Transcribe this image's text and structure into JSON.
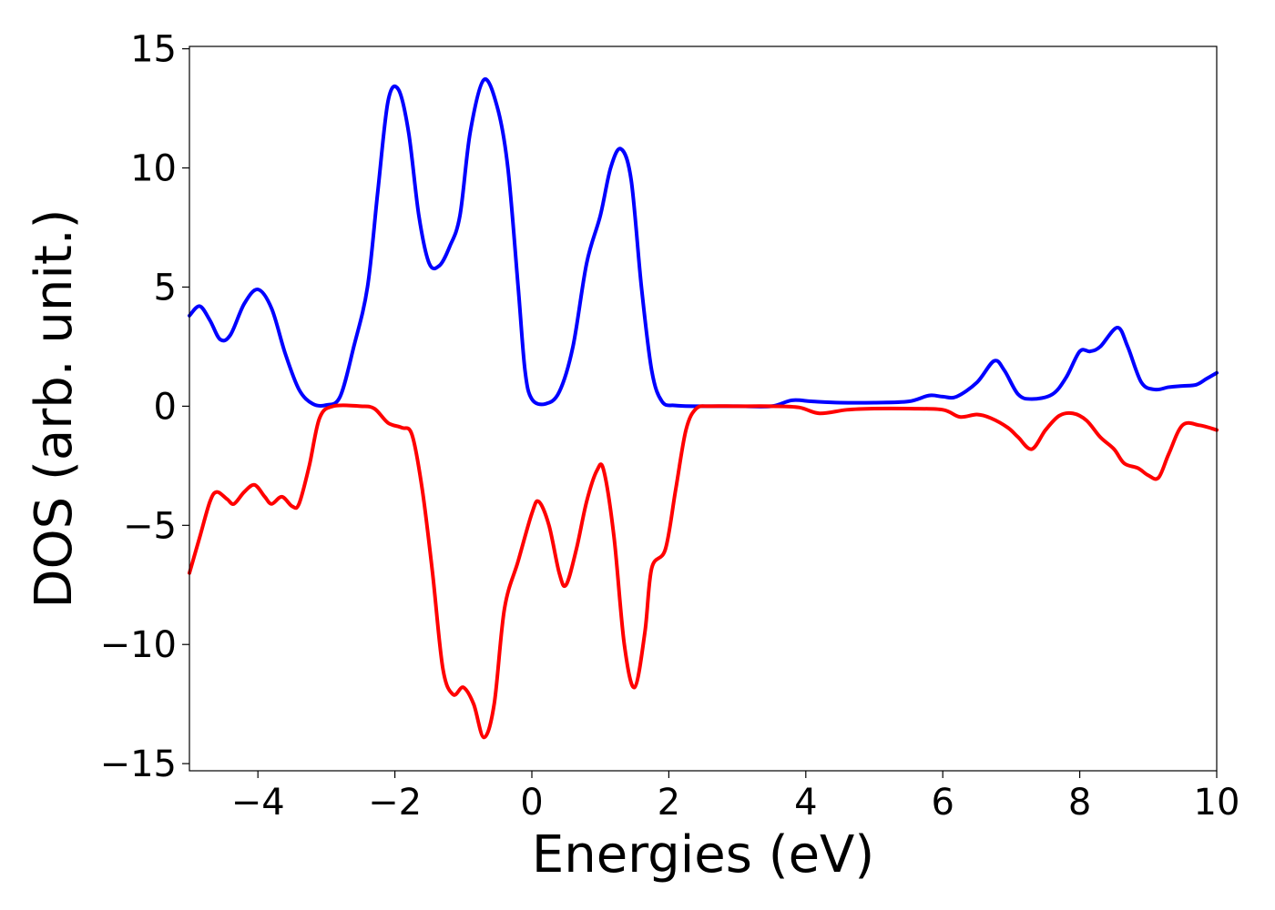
{
  "chart_data": {
    "type": "line",
    "title": "",
    "xlabel": "Energies (eV)",
    "ylabel": "DOS (arb. unit.)",
    "xlim": [
      -5,
      10
    ],
    "ylim": [
      -15.3,
      15.1
    ],
    "grid": false,
    "legend": "none",
    "x_ticks": [
      -4,
      -2,
      0,
      2,
      4,
      6,
      8,
      10
    ],
    "x_tick_labels": [
      "−4",
      "−2",
      "0",
      "2",
      "4",
      "6",
      "8",
      "10"
    ],
    "y_ticks": [
      15,
      10,
      5,
      0,
      -5,
      -10,
      -15
    ],
    "y_tick_labels": [
      "15",
      "10",
      "5",
      "0",
      "−5",
      "−10",
      "−15"
    ],
    "series": [
      {
        "color": "#0000ff",
        "points": [
          [
            -5.0,
            3.8
          ],
          [
            -4.85,
            4.2
          ],
          [
            -4.7,
            3.6
          ],
          [
            -4.55,
            2.8
          ],
          [
            -4.4,
            3.0
          ],
          [
            -4.2,
            4.3
          ],
          [
            -4.0,
            4.9
          ],
          [
            -3.8,
            4.1
          ],
          [
            -3.6,
            2.2
          ],
          [
            -3.4,
            0.7
          ],
          [
            -3.2,
            0.1
          ],
          [
            -3.0,
            0.05
          ],
          [
            -2.8,
            0.4
          ],
          [
            -2.6,
            2.5
          ],
          [
            -2.4,
            5.0
          ],
          [
            -2.25,
            9.0
          ],
          [
            -2.1,
            12.8
          ],
          [
            -1.95,
            13.3
          ],
          [
            -1.8,
            11.5
          ],
          [
            -1.65,
            8.0
          ],
          [
            -1.5,
            6.0
          ],
          [
            -1.35,
            5.9
          ],
          [
            -1.2,
            6.7
          ],
          [
            -1.05,
            8.0
          ],
          [
            -0.9,
            11.5
          ],
          [
            -0.7,
            13.7
          ],
          [
            -0.5,
            12.5
          ],
          [
            -0.35,
            10.0
          ],
          [
            -0.2,
            5.0
          ],
          [
            -0.1,
            1.5
          ],
          [
            0.0,
            0.3
          ],
          [
            0.2,
            0.1
          ],
          [
            0.4,
            0.6
          ],
          [
            0.6,
            2.5
          ],
          [
            0.8,
            6.0
          ],
          [
            1.0,
            8.0
          ],
          [
            1.15,
            10.0
          ],
          [
            1.3,
            10.8
          ],
          [
            1.45,
            9.5
          ],
          [
            1.6,
            5.0
          ],
          [
            1.75,
            1.5
          ],
          [
            1.9,
            0.2
          ],
          [
            2.1,
            0.03
          ],
          [
            2.5,
            0.0
          ],
          [
            3.0,
            0.0
          ],
          [
            3.5,
            0.0
          ],
          [
            3.8,
            0.25
          ],
          [
            4.1,
            0.2
          ],
          [
            4.5,
            0.15
          ],
          [
            5.0,
            0.15
          ],
          [
            5.5,
            0.2
          ],
          [
            5.8,
            0.45
          ],
          [
            6.0,
            0.4
          ],
          [
            6.2,
            0.4
          ],
          [
            6.5,
            1.0
          ],
          [
            6.75,
            1.9
          ],
          [
            6.9,
            1.5
          ],
          [
            7.1,
            0.5
          ],
          [
            7.3,
            0.3
          ],
          [
            7.6,
            0.5
          ],
          [
            7.8,
            1.2
          ],
          [
            8.0,
            2.3
          ],
          [
            8.15,
            2.3
          ],
          [
            8.3,
            2.5
          ],
          [
            8.55,
            3.3
          ],
          [
            8.7,
            2.5
          ],
          [
            8.9,
            1.0
          ],
          [
            9.1,
            0.7
          ],
          [
            9.3,
            0.8
          ],
          [
            9.5,
            0.85
          ],
          [
            9.7,
            0.9
          ],
          [
            9.85,
            1.15
          ],
          [
            10.0,
            1.4
          ]
        ]
      },
      {
        "color": "#ff0000",
        "points": [
          [
            -5.0,
            -7.0
          ],
          [
            -4.85,
            -5.5
          ],
          [
            -4.7,
            -4.0
          ],
          [
            -4.6,
            -3.6
          ],
          [
            -4.45,
            -3.9
          ],
          [
            -4.35,
            -4.1
          ],
          [
            -4.2,
            -3.6
          ],
          [
            -4.05,
            -3.3
          ],
          [
            -3.9,
            -3.8
          ],
          [
            -3.8,
            -4.1
          ],
          [
            -3.65,
            -3.8
          ],
          [
            -3.5,
            -4.2
          ],
          [
            -3.4,
            -4.1
          ],
          [
            -3.25,
            -2.5
          ],
          [
            -3.1,
            -0.5
          ],
          [
            -2.9,
            0.0
          ],
          [
            -2.5,
            0.0
          ],
          [
            -2.3,
            -0.1
          ],
          [
            -2.1,
            -0.7
          ],
          [
            -1.9,
            -0.9
          ],
          [
            -1.75,
            -1.2
          ],
          [
            -1.6,
            -3.5
          ],
          [
            -1.45,
            -7.0
          ],
          [
            -1.3,
            -11.0
          ],
          [
            -1.15,
            -12.1
          ],
          [
            -1.0,
            -11.8
          ],
          [
            -0.85,
            -12.5
          ],
          [
            -0.7,
            -13.9
          ],
          [
            -0.55,
            -12.5
          ],
          [
            -0.4,
            -8.5
          ],
          [
            -0.2,
            -6.5
          ],
          [
            0.0,
            -4.5
          ],
          [
            0.1,
            -4.0
          ],
          [
            0.25,
            -5.0
          ],
          [
            0.4,
            -7.0
          ],
          [
            0.5,
            -7.5
          ],
          [
            0.65,
            -6.0
          ],
          [
            0.8,
            -4.0
          ],
          [
            0.95,
            -2.7
          ],
          [
            1.05,
            -2.7
          ],
          [
            1.2,
            -5.5
          ],
          [
            1.35,
            -10.0
          ],
          [
            1.5,
            -11.8
          ],
          [
            1.65,
            -9.5
          ],
          [
            1.75,
            -6.8
          ],
          [
            1.95,
            -6.0
          ],
          [
            2.1,
            -3.5
          ],
          [
            2.25,
            -1.0
          ],
          [
            2.4,
            -0.1
          ],
          [
            2.6,
            0.0
          ],
          [
            3.0,
            0.0
          ],
          [
            3.5,
            0.0
          ],
          [
            3.9,
            -0.05
          ],
          [
            4.2,
            -0.3
          ],
          [
            4.6,
            -0.15
          ],
          [
            5.0,
            -0.1
          ],
          [
            5.5,
            -0.1
          ],
          [
            6.0,
            -0.15
          ],
          [
            6.25,
            -0.45
          ],
          [
            6.5,
            -0.35
          ],
          [
            6.7,
            -0.5
          ],
          [
            6.95,
            -0.9
          ],
          [
            7.1,
            -1.3
          ],
          [
            7.3,
            -1.8
          ],
          [
            7.5,
            -1.0
          ],
          [
            7.7,
            -0.4
          ],
          [
            7.9,
            -0.3
          ],
          [
            8.1,
            -0.6
          ],
          [
            8.3,
            -1.3
          ],
          [
            8.5,
            -1.8
          ],
          [
            8.65,
            -2.4
          ],
          [
            8.85,
            -2.6
          ],
          [
            9.0,
            -2.9
          ],
          [
            9.15,
            -3.0
          ],
          [
            9.3,
            -2.0
          ],
          [
            9.5,
            -0.8
          ],
          [
            9.75,
            -0.8
          ],
          [
            10.0,
            -1.0
          ]
        ]
      }
    ]
  }
}
